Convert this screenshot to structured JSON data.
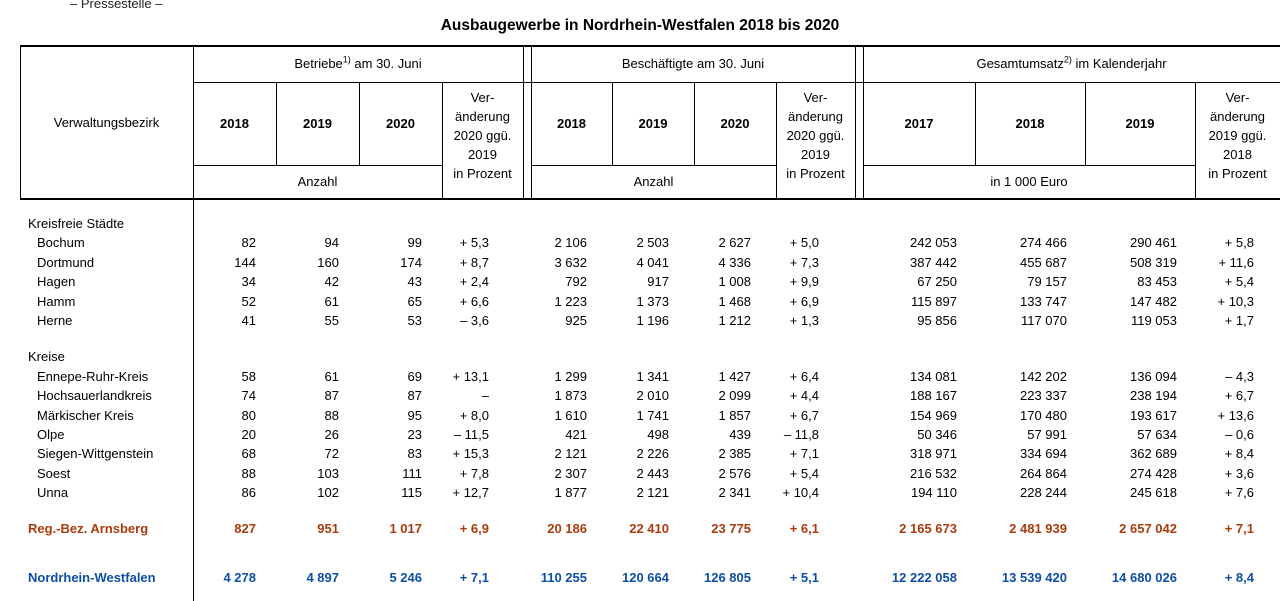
{
  "page": {
    "header_note": "– Pressestelle –",
    "title": "Ausbaugewerbe in Nordrhein-Westfalen 2018 bis 2020"
  },
  "table": {
    "corner_label": "Verwaltungsbezirk",
    "groups": [
      {
        "title_pre": "Betriebe",
        "title_sup": "1)",
        "title_post": " am 30. Juni",
        "years": [
          "2018",
          "2019",
          "2020"
        ],
        "unit": "Anzahl",
        "change_lines": "Ver-\nänderung\n2020 ggü.\n2019",
        "change_unit": "in Prozent"
      },
      {
        "title_pre": "Beschäftigte am 30. Juni",
        "title_sup": "",
        "title_post": "",
        "years": [
          "2018",
          "2019",
          "2020"
        ],
        "unit": "Anzahl",
        "change_lines": "Ver-\nänderung\n2020 ggü.\n2019",
        "change_unit": "in Prozent"
      },
      {
        "title_pre": "Gesamtumsatz",
        "title_sup": "2)",
        "title_post": " im Kalenderjahr",
        "years": [
          "2017",
          "2018",
          "2019"
        ],
        "unit": "in 1 000 Euro",
        "change_lines": "Ver-\nänderung\n2019 ggü.\n2018",
        "change_unit": "in Prozent"
      }
    ],
    "colors": {
      "summary_arnsberg": "#a83c0e",
      "summary_nrw": "#0e4fa5"
    },
    "rows": [
      {
        "label": "Kreisfreie Städte",
        "type": "section",
        "values": []
      },
      {
        "label": "Bochum",
        "type": "data",
        "values": [
          "82",
          "94",
          "99",
          "+ 5,3",
          "2 106",
          "2 503",
          "2 627",
          "+ 5,0",
          "242 053",
          "274 466",
          "290 461",
          "+ 5,8"
        ]
      },
      {
        "label": "Dortmund",
        "type": "data",
        "values": [
          "144",
          "160",
          "174",
          "+ 8,7",
          "3 632",
          "4 041",
          "4 336",
          "+ 7,3",
          "387 442",
          "455 687",
          "508 319",
          "+ 11,6"
        ]
      },
      {
        "label": "Hagen",
        "type": "data",
        "values": [
          "34",
          "42",
          "43",
          "+ 2,4",
          "792",
          "917",
          "1 008",
          "+ 9,9",
          "67 250",
          "79 157",
          "83 453",
          "+ 5,4"
        ]
      },
      {
        "label": "Hamm",
        "type": "data",
        "values": [
          "52",
          "61",
          "65",
          "+ 6,6",
          "1 223",
          "1 373",
          "1 468",
          "+ 6,9",
          "115 897",
          "133 747",
          "147 482",
          "+ 10,3"
        ]
      },
      {
        "label": "Herne",
        "type": "data",
        "values": [
          "41",
          "55",
          "53",
          "– 3,6",
          "925",
          "1 196",
          "1 212",
          "+ 1,3",
          "95 856",
          "117 070",
          "119 053",
          "+ 1,7"
        ]
      },
      {
        "label": "Kreise",
        "type": "section",
        "values": []
      },
      {
        "label": "Ennepe-Ruhr-Kreis",
        "type": "data",
        "values": [
          "58",
          "61",
          "69",
          "+ 13,1",
          "1 299",
          "1 341",
          "1 427",
          "+ 6,4",
          "134 081",
          "142 202",
          "136 094",
          "– 4,3"
        ]
      },
      {
        "label": "Hochsauerlandkreis",
        "type": "data",
        "values": [
          "74",
          "87",
          "87",
          "–",
          "1 873",
          "2 010",
          "2 099",
          "+ 4,4",
          "188 167",
          "223 337",
          "238 194",
          "+ 6,7"
        ]
      },
      {
        "label": "Märkischer Kreis",
        "type": "data",
        "values": [
          "80",
          "88",
          "95",
          "+ 8,0",
          "1 610",
          "1 741",
          "1 857",
          "+ 6,7",
          "154 969",
          "170 480",
          "193 617",
          "+ 13,6"
        ]
      },
      {
        "label": "Olpe",
        "type": "data",
        "values": [
          "20",
          "26",
          "23",
          "– 11,5",
          "421",
          "498",
          "439",
          "– 11,8",
          "50 346",
          "57 991",
          "57 634",
          "– 0,6"
        ]
      },
      {
        "label": "Siegen-Wittgenstein",
        "type": "data",
        "values": [
          "68",
          "72",
          "83",
          "+ 15,3",
          "2 121",
          "2 226",
          "2 385",
          "+ 7,1",
          "318 971",
          "334 694",
          "362 689",
          "+ 8,4"
        ]
      },
      {
        "label": "Soest",
        "type": "data",
        "values": [
          "88",
          "103",
          "111",
          "+ 7,8",
          "2 307",
          "2 443",
          "2 576",
          "+ 5,4",
          "216 532",
          "264 864",
          "274 428",
          "+ 3,6"
        ]
      },
      {
        "label": "Unna",
        "type": "data",
        "values": [
          "86",
          "102",
          "115",
          "+ 12,7",
          "1 877",
          "2 121",
          "2 341",
          "+ 10,4",
          "194 110",
          "228 244",
          "245 618",
          "+ 7,6"
        ]
      },
      {
        "label": "Reg.-Bez. Arnsberg",
        "type": "summary-a",
        "color_key": "summary_arnsberg",
        "values": [
          "827",
          "951",
          "1 017",
          "+ 6,9",
          "20 186",
          "22 410",
          "23 775",
          "+ 6,1",
          "2 165 673",
          "2 481 939",
          "2 657 042",
          "+ 7,1"
        ]
      },
      {
        "label": "Nordrhein-Westfalen",
        "type": "summary-b",
        "color_key": "summary_nrw",
        "values": [
          "4 278",
          "4 897",
          "5 246",
          "+ 7,1",
          "110 255",
          "120 664",
          "126 805",
          "+ 5,1",
          "12 222 058",
          "13 539 420",
          "14 680 026",
          "+ 8,4"
        ]
      }
    ]
  }
}
